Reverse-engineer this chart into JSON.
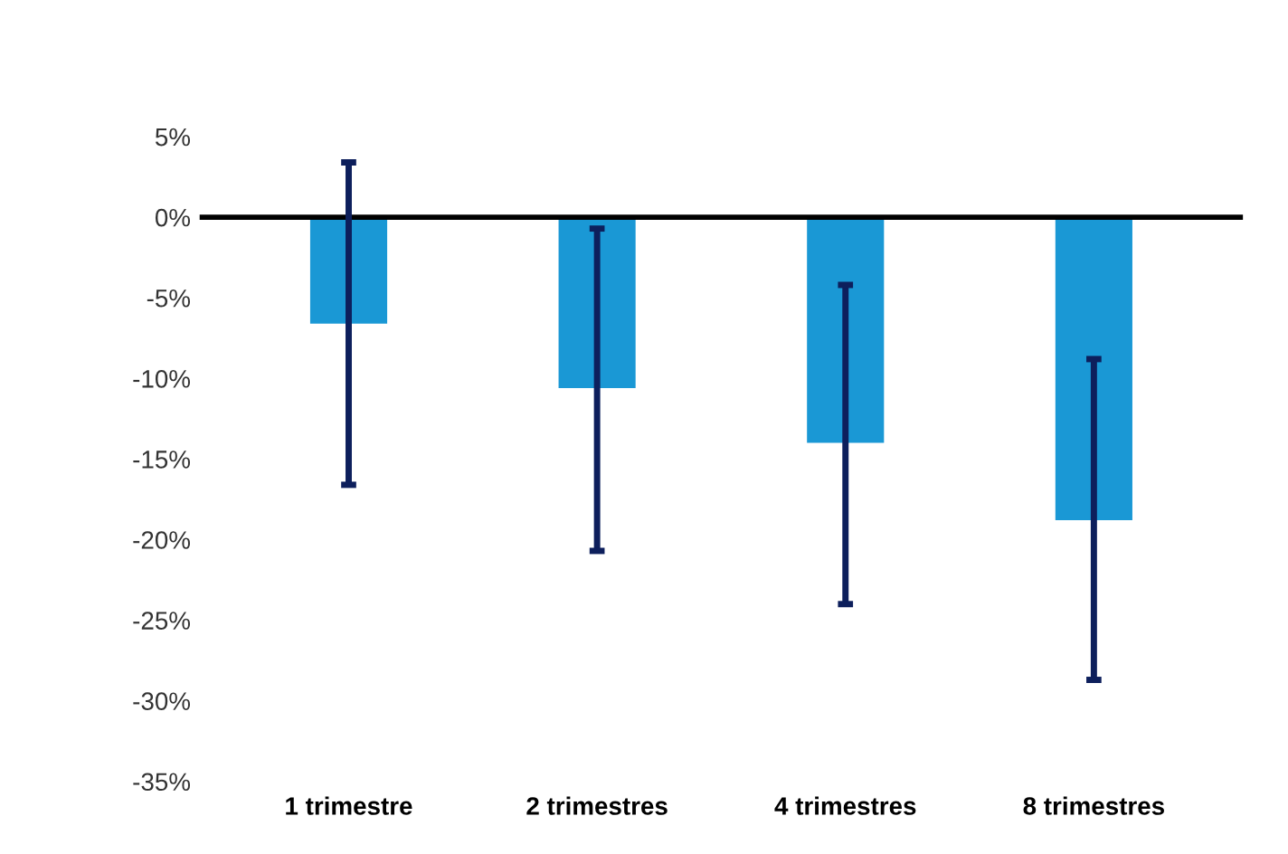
{
  "chart_data": {
    "type": "bar",
    "categories": [
      "1 trimestre",
      "2 trimestres",
      "4 trimestres",
      "8 trimestres"
    ],
    "values": [
      -6.6,
      -10.6,
      -14.0,
      -18.8
    ],
    "color": "#1a98d5",
    "errors": [
      [
        -16.6,
        3.4
      ],
      [
        -20.7,
        -0.7
      ],
      [
        -24.0,
        -4.2
      ],
      [
        -28.7,
        -8.8
      ]
    ],
    "ylim": [
      -35,
      5
    ],
    "yticks": [
      {
        "value": 5,
        "label": "5%"
      },
      {
        "value": 0,
        "label": "0%"
      },
      {
        "value": -5,
        "label": "-5%"
      },
      {
        "value": -10,
        "label": "-10%"
      },
      {
        "value": -15,
        "label": "-15%"
      },
      {
        "value": -20,
        "label": "-20%"
      },
      {
        "value": -25,
        "label": "-25%"
      },
      {
        "value": -30,
        "label": "-30%"
      },
      {
        "value": -35,
        "label": "-35%"
      }
    ],
    "ref_lines": [
      {
        "axis": "y",
        "value": 0,
        "label": null,
        "color": "#000000"
      }
    ],
    "grid": false,
    "legend": false
  }
}
